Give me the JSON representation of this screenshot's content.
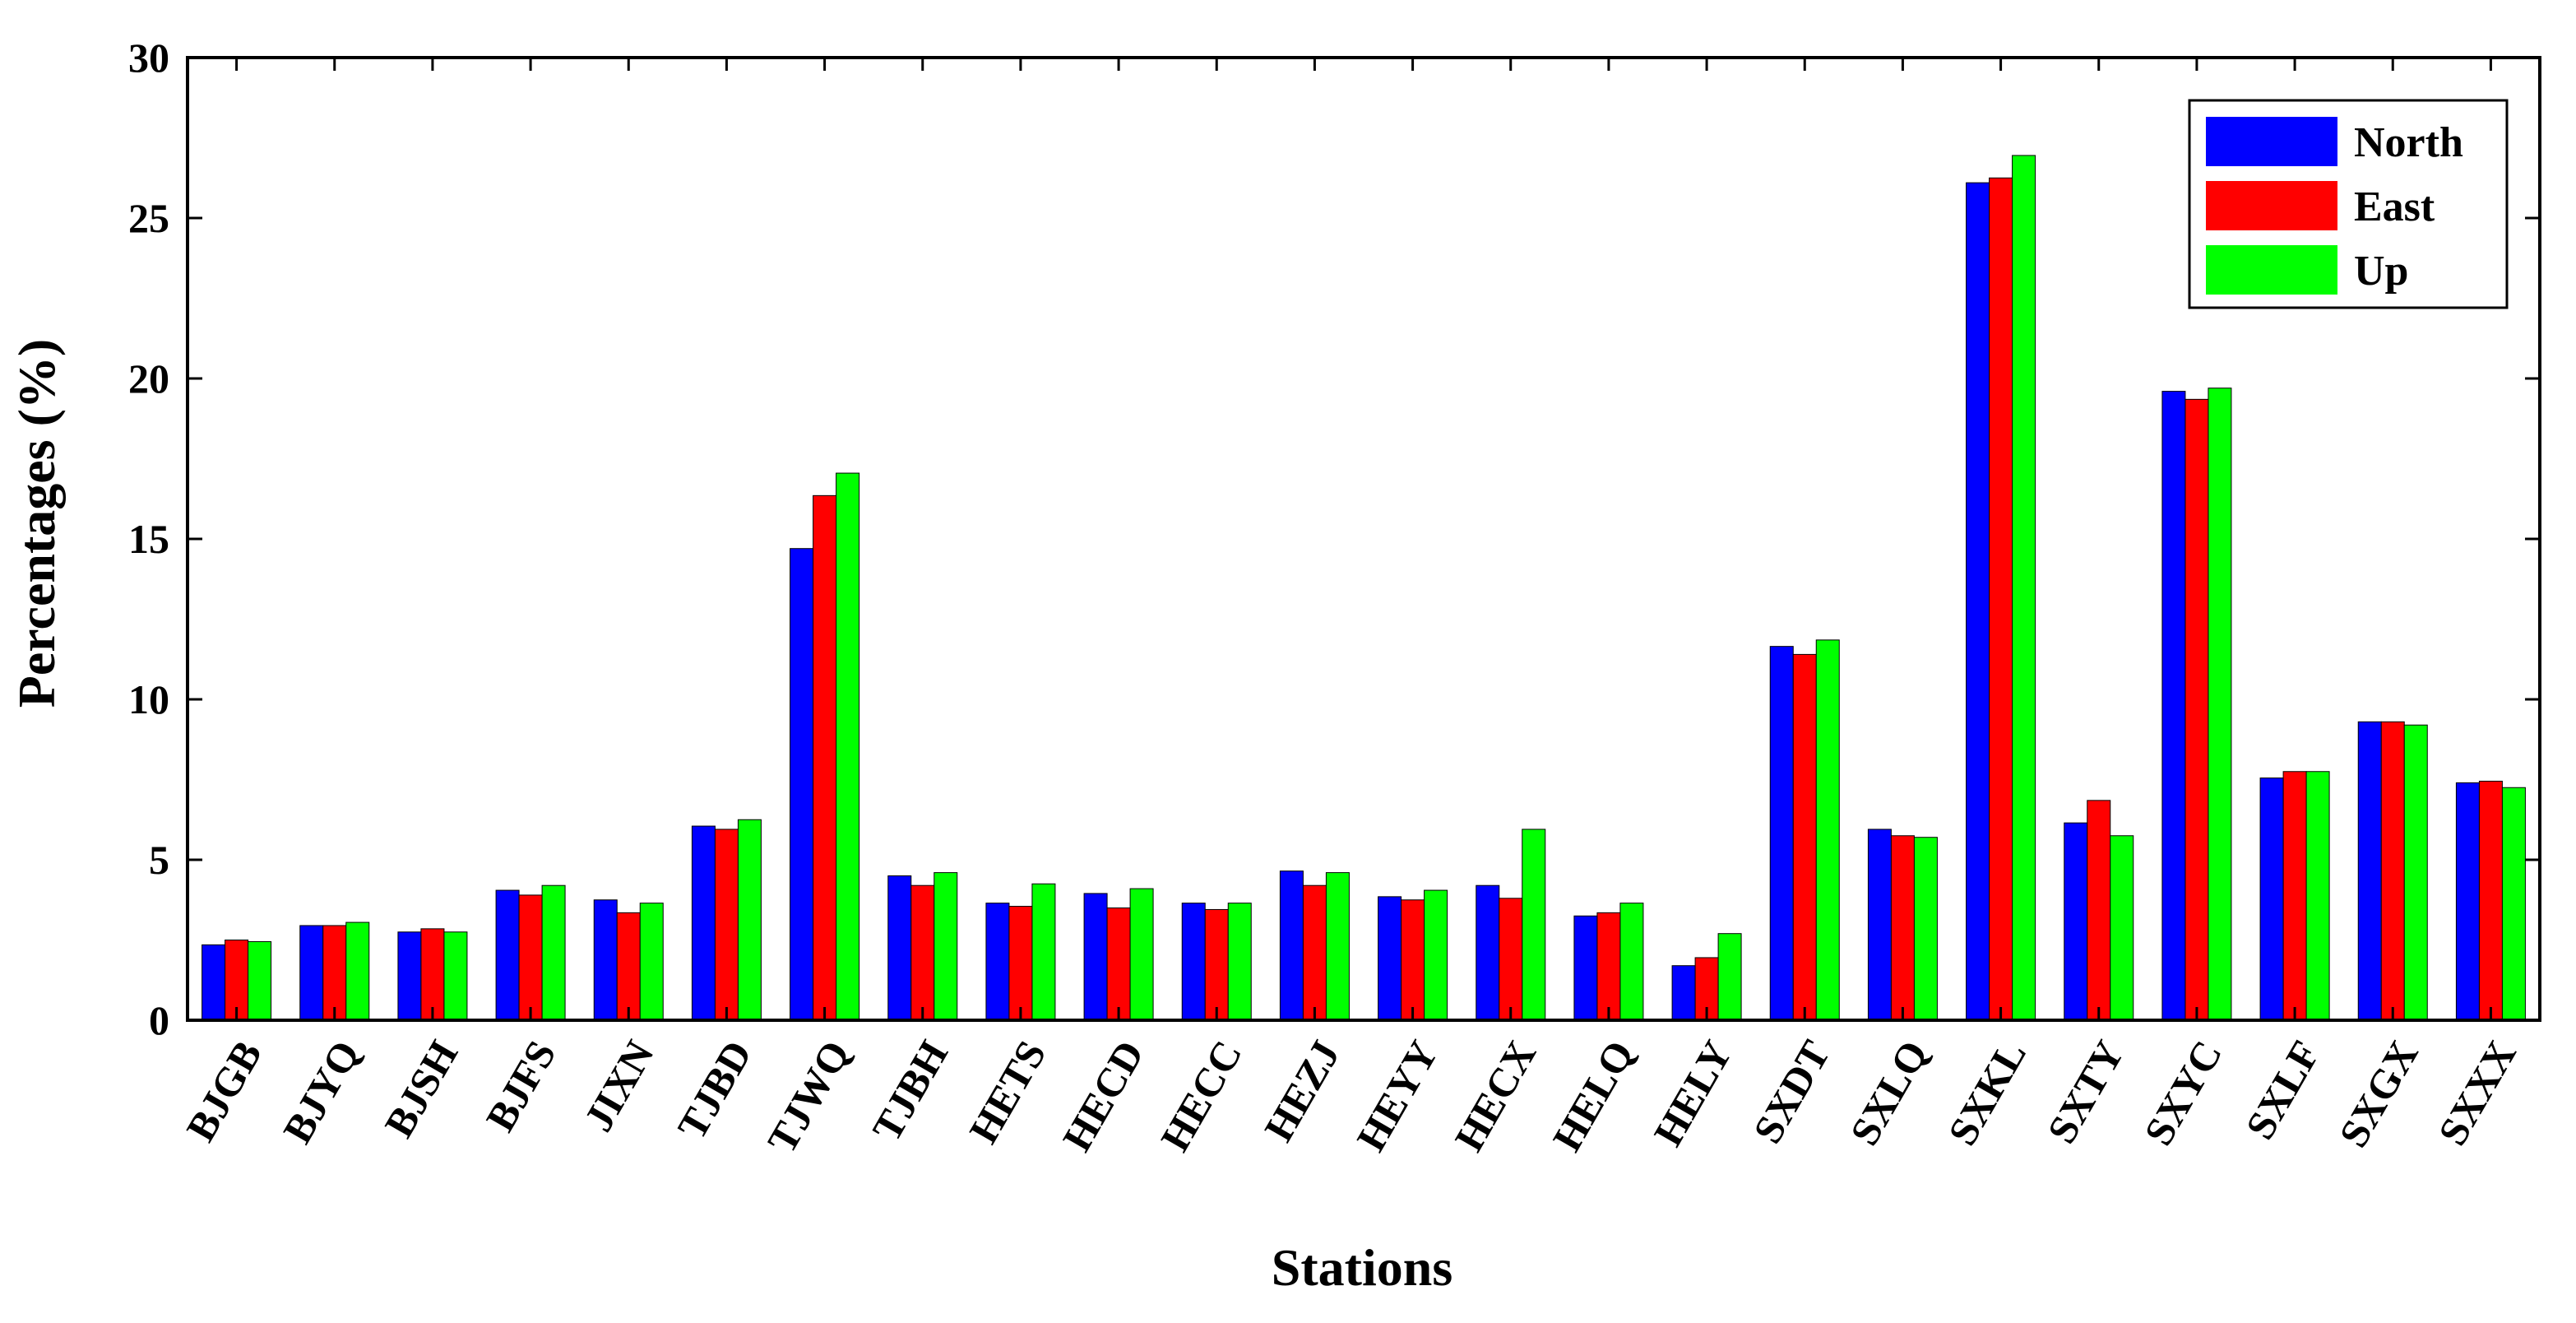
{
  "chart_data": {
    "type": "bar",
    "title": "",
    "xlabel": "Stations",
    "ylabel": "Percentages (%)",
    "ylim": [
      0,
      30
    ],
    "yticks": [
      0,
      5,
      10,
      15,
      20,
      25,
      30
    ],
    "grid": false,
    "legend_position": "top-right",
    "categories": [
      "BJGB",
      "BJYQ",
      "BJSH",
      "BJFS",
      "JIXN",
      "TJBD",
      "TJWQ",
      "TJBH",
      "HETS",
      "HECD",
      "HECC",
      "HEZJ",
      "HEYY",
      "HECX",
      "HELQ",
      "HELY",
      "SXDT",
      "SXLQ",
      "SXKL",
      "SXTY",
      "SXYC",
      "SXLF",
      "SXGX",
      "SXXX"
    ],
    "series": [
      {
        "name": "North",
        "color": "#0000ff",
        "values": [
          2.35,
          2.95,
          2.75,
          4.05,
          3.75,
          6.05,
          14.7,
          4.5,
          3.65,
          3.95,
          3.65,
          4.65,
          3.85,
          4.2,
          3.25,
          1.7,
          11.65,
          5.95,
          26.1,
          6.15,
          19.6,
          7.55,
          9.3,
          7.4
        ]
      },
      {
        "name": "East",
        "color": "#ff0000",
        "values": [
          2.5,
          2.95,
          2.85,
          3.9,
          3.35,
          5.95,
          16.35,
          4.2,
          3.55,
          3.5,
          3.45,
          4.2,
          3.75,
          3.8,
          3.35,
          1.95,
          11.4,
          5.75,
          26.25,
          6.85,
          19.35,
          7.75,
          9.3,
          7.45
        ]
      },
      {
        "name": "Up",
        "color": "#00ff00",
        "values": [
          2.45,
          3.05,
          2.75,
          4.2,
          3.65,
          6.25,
          17.05,
          4.6,
          4.25,
          4.1,
          3.65,
          4.6,
          4.05,
          5.95,
          3.65,
          2.7,
          11.85,
          5.7,
          26.95,
          5.75,
          19.7,
          7.75,
          9.2,
          7.25
        ]
      }
    ]
  }
}
